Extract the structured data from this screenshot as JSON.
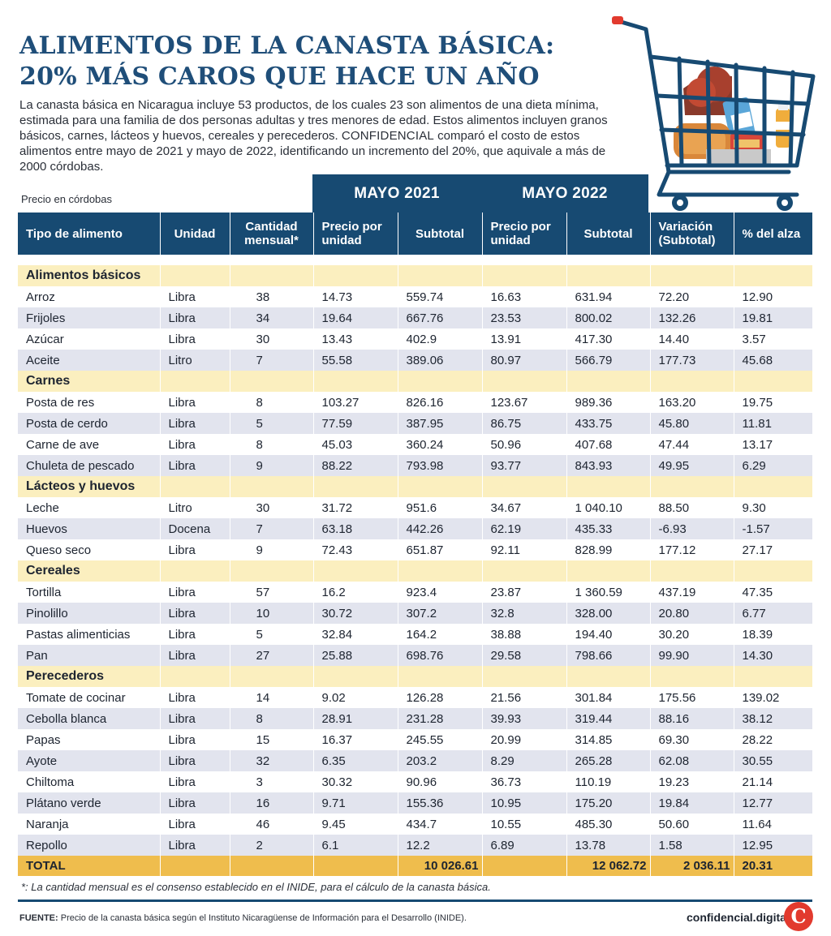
{
  "header": {
    "title_line1": "ALIMENTOS DE LA CANASTA BÁSICA:",
    "title_line2": "20% MÁS CAROS QUE HACE UN AÑO",
    "intro_before": "La canasta básica en Nicaragua incluye 53 productos, de los cuales 23 son alimentos de una dieta mínima, estimada para una familia de dos personas adultas y tres menores de edad. Estos alimentos incluyen granos básicos, carnes, lácteos y huevos, cereales y perecederos. ",
    "intro_brand": "CONFIDENCIAL",
    "intro_after": " comparó el costo de estos alimentos entre mayo de 2021 y mayo de 2022, identificando un incremento del 20%, que aquivale a más de 2000 córdobas."
  },
  "chart_data": {
    "type": "table",
    "unit_note": "Precio en córdobas",
    "year_headers": [
      "MAYO 2021",
      "MAYO 2022"
    ],
    "columns": {
      "tipo": "Tipo de alimento",
      "unidad": "Unidad",
      "cantidad": "Cantidad mensual*",
      "precio21": "Precio por unidad",
      "subtotal21": "Subtotal",
      "precio22": "Precio por unidad",
      "subtotal22": "Subtotal",
      "variacion": "Variación (Subtotal)",
      "alza": "% del alza"
    },
    "sections": [
      {
        "name": "Alimentos básicos",
        "rows": [
          [
            "Arroz",
            "Libra",
            "38",
            "14.73",
            "559.74",
            "16.63",
            "631.94",
            "72.20",
            "12.90"
          ],
          [
            "Frijoles",
            "Libra",
            "34",
            "19.64",
            "667.76",
            "23.53",
            "800.02",
            "132.26",
            "19.81"
          ],
          [
            "Azúcar",
            "Libra",
            "30",
            "13.43",
            "402.9",
            "13.91",
            "417.30",
            "14.40",
            "3.57"
          ],
          [
            "Aceite",
            "Litro",
            "7",
            "55.58",
            "389.06",
            "80.97",
            "566.79",
            "177.73",
            "45.68"
          ]
        ]
      },
      {
        "name": "Carnes",
        "rows": [
          [
            "Posta de res",
            "Libra",
            "8",
            "103.27",
            "826.16",
            "123.67",
            "989.36",
            "163.20",
            "19.75"
          ],
          [
            "Posta de cerdo",
            "Libra",
            "5",
            "77.59",
            "387.95",
            "86.75",
            "433.75",
            "45.80",
            "11.81"
          ],
          [
            "Carne de ave",
            "Libra",
            "8",
            "45.03",
            "360.24",
            "50.96",
            "407.68",
            "47.44",
            "13.17"
          ],
          [
            "Chuleta de pescado",
            "Libra",
            "9",
            "88.22",
            "793.98",
            "93.77",
            "843.93",
            "49.95",
            "6.29"
          ]
        ]
      },
      {
        "name": "Lácteos y huevos",
        "rows": [
          [
            "Leche",
            "Litro",
            "30",
            "31.72",
            "951.6",
            "34.67",
            "1 040.10",
            "88.50",
            "9.30"
          ],
          [
            "Huevos",
            "Docena",
            "7",
            "63.18",
            "442.26",
            "62.19",
            "435.33",
            "-6.93",
            "-1.57"
          ],
          [
            "Queso seco",
            "Libra",
            "9",
            "72.43",
            "651.87",
            "92.11",
            "828.99",
            "177.12",
            "27.17"
          ]
        ]
      },
      {
        "name": "Cereales",
        "rows": [
          [
            "Tortilla",
            "Libra",
            "57",
            "16.2",
            "923.4",
            "23.87",
            "1 360.59",
            "437.19",
            "47.35"
          ],
          [
            "Pinolillo",
            "Libra",
            "10",
            "30.72",
            "307.2",
            "32.8",
            "328.00",
            "20.80",
            "6.77"
          ],
          [
            "Pastas alimenticias",
            "Libra",
            "5",
            "32.84",
            "164.2",
            "38.88",
            "194.40",
            "30.20",
            "18.39"
          ],
          [
            "Pan",
            "Libra",
            "27",
            "25.88",
            "698.76",
            "29.58",
            "798.66",
            "99.90",
            "14.30"
          ]
        ]
      },
      {
        "name": "Perecederos",
        "rows": [
          [
            "Tomate de cocinar",
            "Libra",
            "14",
            "9.02",
            "126.28",
            "21.56",
            "301.84",
            "175.56",
            "139.02"
          ],
          [
            "Cebolla blanca",
            "Libra",
            "8",
            "28.91",
            "231.28",
            "39.93",
            "319.44",
            "88.16",
            "38.12"
          ],
          [
            "Papas",
            "Libra",
            "15",
            "16.37",
            "245.55",
            "20.99",
            "314.85",
            "69.30",
            "28.22"
          ],
          [
            "Ayote",
            "Libra",
            "32",
            "6.35",
            "203.2",
            "8.29",
            "265.28",
            "62.08",
            "30.55"
          ],
          [
            "Chiltoma",
            "Libra",
            "3",
            "30.32",
            "90.96",
            "36.73",
            "110.19",
            "19.23",
            "21.14"
          ],
          [
            "Plátano verde",
            "Libra",
            "16",
            "9.71",
            "155.36",
            "10.95",
            "175.20",
            "19.84",
            "12.77"
          ],
          [
            "Naranja",
            "Libra",
            "46",
            "9.45",
            "434.7",
            "10.55",
            "485.30",
            "50.60",
            "11.64"
          ],
          [
            "Repollo",
            "Libra",
            "2",
            "6.1",
            "12.2",
            "6.89",
            "13.78",
            "1.58",
            "12.95"
          ]
        ]
      }
    ],
    "total": {
      "label": "TOTAL",
      "subtotal21": "10 026.61",
      "subtotal22": "12 062.72",
      "variacion": "2 036.11",
      "alza": "20.31"
    }
  },
  "footer": {
    "footnote": "*: La cantidad mensual es el consenso establecido en el INIDE, para el cálculo de la canasta básica.",
    "source_label": "FUENTE:",
    "source_text": " Precio de la canasta básica según el Instituto Nicaragüense de Información para el Desarrollo (INIDE).",
    "site": "confidencial.digital",
    "logo_letter": "C"
  },
  "colors": {
    "navy": "#174a72",
    "title_blue": "#1f4e79",
    "section_yellow": "#fbefbf",
    "row_alt": "#e2e4ee",
    "total_gold": "#efbd4d",
    "logo_red": "#e23a2e"
  },
  "icons": {
    "cart": "shopping-cart-icon"
  }
}
